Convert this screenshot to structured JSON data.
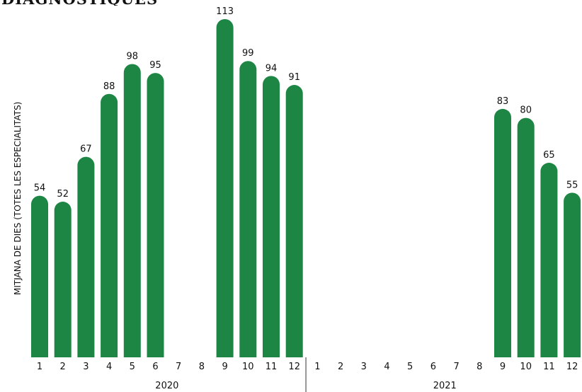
{
  "chart_data": {
    "type": "bar",
    "title": "DIAGNÒSTIQUES",
    "ylabel": "MITJANA  DE DIES (TOTES LES ESPECIALITATS)",
    "xlabel": "",
    "groups": [
      {
        "name": "2020",
        "categories": [
          "1",
          "2",
          "3",
          "4",
          "5",
          "6",
          "7",
          "8",
          "9",
          "10",
          "11",
          "12"
        ],
        "values": [
          54,
          52,
          67,
          88,
          98,
          95,
          null,
          null,
          113,
          99,
          94,
          91
        ]
      },
      {
        "name": "2021",
        "categories": [
          "1",
          "2",
          "3",
          "4",
          "5",
          "6",
          "7",
          "8",
          "9",
          "10",
          "11",
          "12"
        ],
        "values": [
          null,
          null,
          null,
          null,
          null,
          null,
          null,
          null,
          83,
          80,
          65,
          55
        ]
      }
    ],
    "ylim": [
      0,
      113
    ],
    "grid": false,
    "legend": "none",
    "colors": {
      "bar": "#1e8645",
      "text": "#111111",
      "divider": "#333333"
    }
  }
}
